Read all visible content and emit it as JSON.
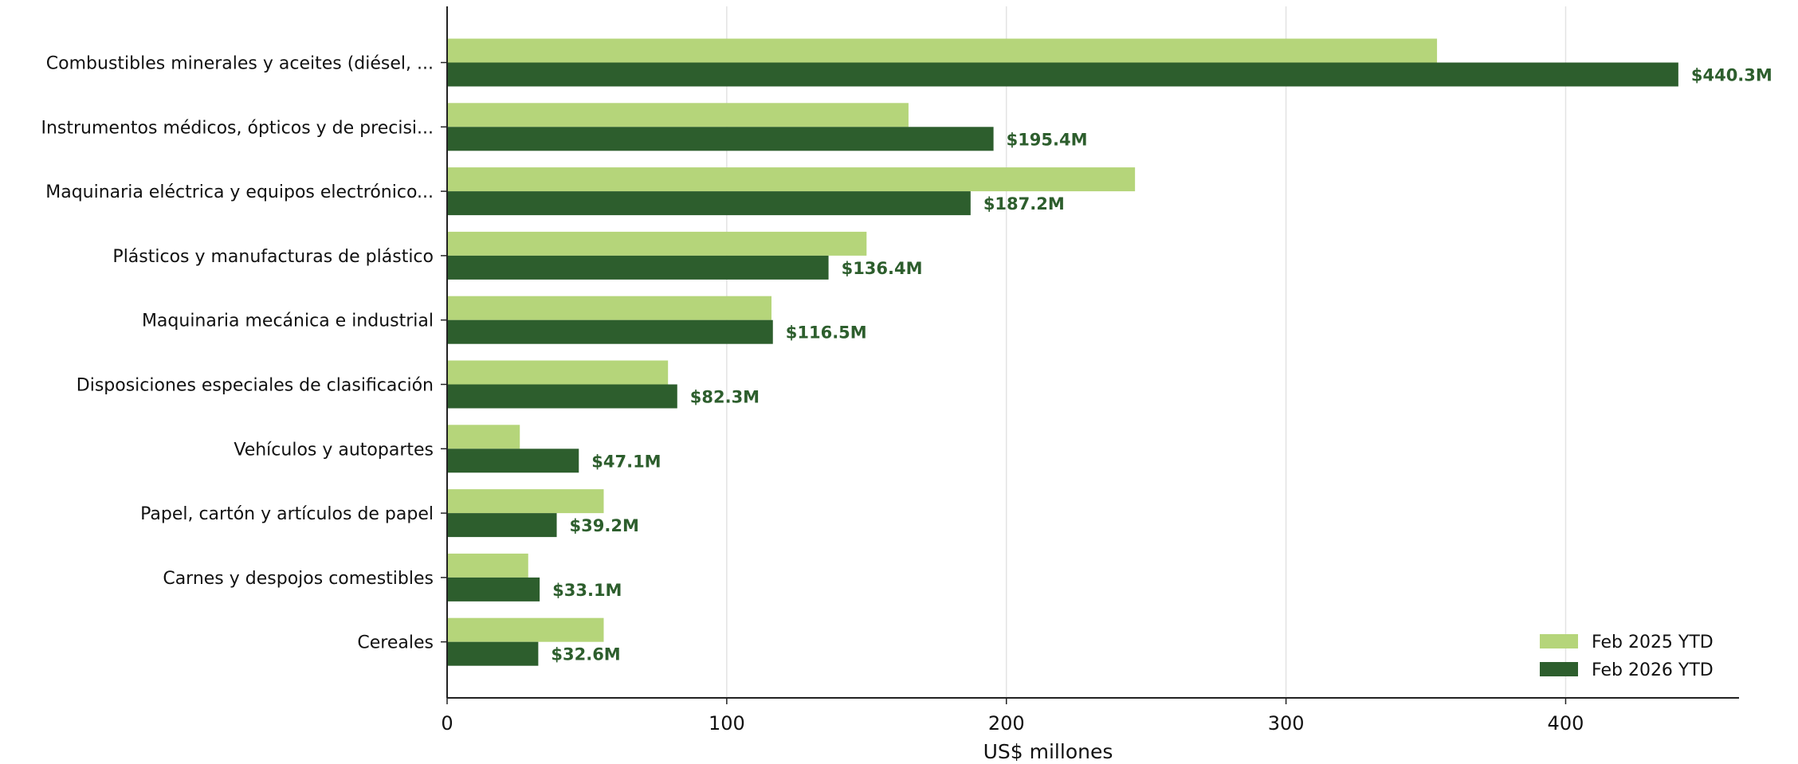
{
  "chart_data": {
    "type": "bar",
    "orientation": "horizontal",
    "title": "",
    "xlabel": "US$ millones",
    "ylabel": "",
    "xlim": [
      0,
      462
    ],
    "xticks": [
      0,
      100,
      200,
      300,
      400
    ],
    "grid": "vertical",
    "legend_position": "bottom-right",
    "categories": [
      "Combustibles minerales y aceites (diésel, ...",
      "Instrumentos médicos, ópticos y de precisi...",
      "Maquinaria eléctrica y equipos electrónico...",
      "Plásticos y manufacturas de plástico",
      "Maquinaria mecánica e industrial",
      "Disposiciones especiales de clasificación",
      "Vehículos y autopartes",
      "Papel, cartón y artículos de papel",
      "Carnes y despojos comestibles",
      "Cereales"
    ],
    "series": [
      {
        "name": "Feb 2025 YTD",
        "color": "#b5d57a",
        "values": [
          354,
          165,
          246,
          150,
          116,
          79,
          26,
          56,
          29,
          56
        ]
      },
      {
        "name": "Feb 2026 YTD",
        "color": "#2d5e2d",
        "values": [
          440.3,
          195.4,
          187.2,
          136.4,
          116.5,
          82.3,
          47.1,
          39.2,
          33.1,
          32.6
        ],
        "labels": [
          "$440.3M",
          "$195.4M",
          "$187.2M",
          "$136.4M",
          "$116.5M",
          "$82.3M",
          "$47.1M",
          "$39.2M",
          "$33.1M",
          "$32.6M"
        ]
      }
    ]
  }
}
